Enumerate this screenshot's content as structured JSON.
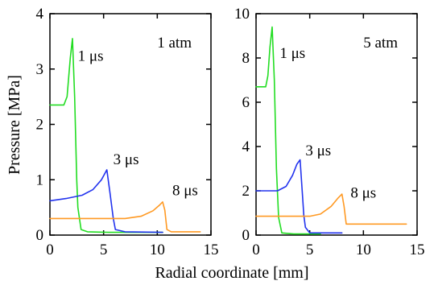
{
  "figure": {
    "xlabel": "Radial coordinate [mm]",
    "ylabel": "Pressure [MPa]"
  },
  "chart_data": [
    {
      "type": "line",
      "panel_label": "1 atm",
      "xlim": [
        0,
        15
      ],
      "ylim": [
        0,
        4
      ],
      "x_ticks": [
        0,
        5,
        10,
        15
      ],
      "y_ticks": [
        0,
        1,
        2,
        3,
        4
      ],
      "grid": false,
      "series": [
        {
          "name": "1 μs",
          "color": "#22dd22",
          "label_at": [
            2.6,
            3.15
          ],
          "points": [
            [
              0,
              2.35
            ],
            [
              1.3,
              2.35
            ],
            [
              1.6,
              2.5
            ],
            [
              1.9,
              3.2
            ],
            [
              2.1,
              3.55
            ],
            [
              2.3,
              2.5
            ],
            [
              2.5,
              1.0
            ],
            [
              2.6,
              0.5
            ],
            [
              2.9,
              0.1
            ],
            [
              3.5,
              0.06
            ],
            [
              5.5,
              0.05
            ],
            [
              10.5,
              0.05
            ]
          ]
        },
        {
          "name": "3 μs",
          "color": "#2233ee",
          "label_at": [
            5.9,
            1.28
          ],
          "points": [
            [
              0,
              0.62
            ],
            [
              1.5,
              0.66
            ],
            [
              3.0,
              0.72
            ],
            [
              4.0,
              0.82
            ],
            [
              4.8,
              1.0
            ],
            [
              5.3,
              1.18
            ],
            [
              5.6,
              0.75
            ],
            [
              5.9,
              0.3
            ],
            [
              6.1,
              0.1
            ],
            [
              7.0,
              0.06
            ],
            [
              10.5,
              0.05
            ]
          ]
        },
        {
          "name": "8 μs",
          "color": "#ff9922",
          "label_at": [
            11.4,
            0.72
          ],
          "points": [
            [
              0,
              0.3
            ],
            [
              7.0,
              0.3
            ],
            [
              8.5,
              0.34
            ],
            [
              9.6,
              0.44
            ],
            [
              10.2,
              0.54
            ],
            [
              10.5,
              0.6
            ],
            [
              10.7,
              0.45
            ],
            [
              10.9,
              0.1
            ],
            [
              11.3,
              0.06
            ],
            [
              14.0,
              0.06
            ]
          ]
        }
      ]
    },
    {
      "type": "line",
      "panel_label": "5 atm",
      "xlim": [
        0,
        15
      ],
      "ylim": [
        0,
        10
      ],
      "x_ticks": [
        0,
        5,
        10,
        15
      ],
      "y_ticks": [
        0,
        2,
        4,
        6,
        8,
        10
      ],
      "grid": false,
      "series": [
        {
          "name": "1 μs",
          "color": "#22dd22",
          "label_at": [
            2.2,
            8.0
          ],
          "points": [
            [
              0,
              6.7
            ],
            [
              0.9,
              6.7
            ],
            [
              1.1,
              7.2
            ],
            [
              1.3,
              8.5
            ],
            [
              1.5,
              9.4
            ],
            [
              1.7,
              7.0
            ],
            [
              1.9,
              3.0
            ],
            [
              2.1,
              0.8
            ],
            [
              2.4,
              0.1
            ],
            [
              3.5,
              0.05
            ],
            [
              6.0,
              0.05
            ]
          ]
        },
        {
          "name": "3 μs",
          "color": "#2233ee",
          "label_at": [
            4.6,
            3.6
          ],
          "points": [
            [
              0,
              2.0
            ],
            [
              2.0,
              2.0
            ],
            [
              2.8,
              2.2
            ],
            [
              3.4,
              2.7
            ],
            [
              3.8,
              3.2
            ],
            [
              4.1,
              3.4
            ],
            [
              4.3,
              2.0
            ],
            [
              4.45,
              0.9
            ],
            [
              4.6,
              0.35
            ],
            [
              5.0,
              0.1
            ],
            [
              8.0,
              0.1
            ]
          ]
        },
        {
          "name": "8 μs",
          "color": "#ff9922",
          "label_at": [
            8.8,
            1.7
          ],
          "points": [
            [
              0,
              0.85
            ],
            [
              5.0,
              0.85
            ],
            [
              6.0,
              0.95
            ],
            [
              7.0,
              1.3
            ],
            [
              7.6,
              1.65
            ],
            [
              8.0,
              1.85
            ],
            [
              8.2,
              1.3
            ],
            [
              8.4,
              0.5
            ],
            [
              8.6,
              0.5
            ],
            [
              14.0,
              0.5
            ]
          ]
        }
      ]
    }
  ]
}
